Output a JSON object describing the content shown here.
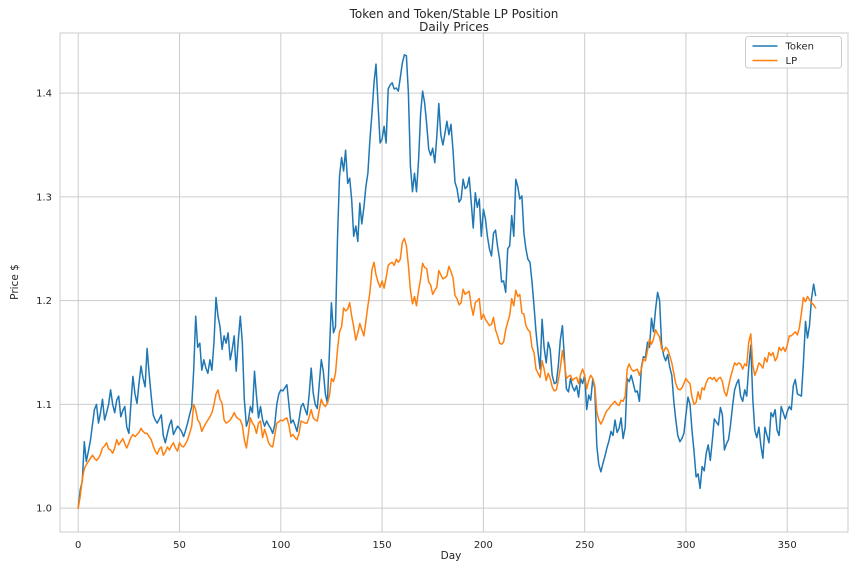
{
  "figure": {
    "title_line1": "Token and Token/Stable LP Position",
    "title_line2": "Daily Prices",
    "xlabel": "Day",
    "ylabel": "Price $"
  },
  "legend": {
    "entries": [
      {
        "label": "Token",
        "color": "#1f77b4"
      },
      {
        "label": "LP",
        "color": "#ff7f0e"
      }
    ]
  },
  "colors": {
    "token_line": "#1f77b4",
    "lp_line": "#ff7f0e",
    "grid": "#cccccc",
    "spine": "#cccccc",
    "text": "#262626",
    "background": "#ffffff"
  },
  "chart_data": {
    "type": "line",
    "title": "Token and Token/Stable LP Position",
    "subtitle": "Daily Prices",
    "xlabel": "Day",
    "ylabel": "Price $",
    "grid": true,
    "legend_position": "upper right",
    "x_ticks": [
      0,
      50,
      100,
      150,
      200,
      250,
      300,
      350
    ],
    "y_ticks": [
      1.0,
      1.1,
      1.2,
      1.3,
      1.4
    ],
    "xlim": [
      -9,
      380
    ],
    "ylim": [
      0.977,
      1.458
    ],
    "x_start": 0,
    "x_step": 1,
    "n_points": 365,
    "x_unit": "day",
    "series": [
      {
        "name": "Token",
        "color": "#1f77b4",
        "values": [
          1.0,
          1.018,
          1.026,
          1.064,
          1.045,
          1.055,
          1.065,
          1.08,
          1.095,
          1.1,
          1.082,
          1.092,
          1.105,
          1.085,
          1.092,
          1.1,
          1.114,
          1.1,
          1.092,
          1.104,
          1.108,
          1.088,
          1.094,
          1.098,
          1.078,
          1.072,
          1.1,
          1.127,
          1.11,
          1.101,
          1.12,
          1.137,
          1.125,
          1.117,
          1.154,
          1.13,
          1.108,
          1.09,
          1.085,
          1.082,
          1.086,
          1.09,
          1.07,
          1.063,
          1.072,
          1.08,
          1.085,
          1.071,
          1.075,
          1.079,
          1.077,
          1.074,
          1.069,
          1.075,
          1.082,
          1.09,
          1.098,
          1.133,
          1.185,
          1.155,
          1.159,
          1.133,
          1.143,
          1.135,
          1.13,
          1.143,
          1.133,
          1.16,
          1.203,
          1.185,
          1.175,
          1.153,
          1.166,
          1.159,
          1.169,
          1.143,
          1.153,
          1.166,
          1.132,
          1.162,
          1.185,
          1.16,
          1.105,
          1.079,
          1.085,
          1.098,
          1.092,
          1.132,
          1.108,
          1.087,
          1.098,
          1.085,
          1.079,
          1.084,
          1.08,
          1.077,
          1.072,
          1.08,
          1.1,
          1.11,
          1.114,
          1.113,
          1.116,
          1.119,
          1.1,
          1.082,
          1.085,
          1.08,
          1.074,
          1.085,
          1.098,
          1.101,
          1.095,
          1.09,
          1.11,
          1.135,
          1.111,
          1.1,
          1.096,
          1.12,
          1.143,
          1.132,
          1.11,
          1.101,
          1.15,
          1.198,
          1.169,
          1.175,
          1.26,
          1.32,
          1.338,
          1.325,
          1.345,
          1.313,
          1.318,
          1.297,
          1.262,
          1.272,
          1.257,
          1.294,
          1.274,
          1.29,
          1.31,
          1.323,
          1.355,
          1.381,
          1.41,
          1.428,
          1.39,
          1.352,
          1.356,
          1.368,
          1.352,
          1.404,
          1.408,
          1.41,
          1.404,
          1.405,
          1.402,
          1.415,
          1.429,
          1.437,
          1.436,
          1.4,
          1.33,
          1.305,
          1.323,
          1.305,
          1.336,
          1.38,
          1.402,
          1.391,
          1.37,
          1.346,
          1.34,
          1.347,
          1.333,
          1.358,
          1.39,
          1.36,
          1.35,
          1.361,
          1.373,
          1.36,
          1.37,
          1.345,
          1.314,
          1.308,
          1.295,
          1.298,
          1.317,
          1.308,
          1.31,
          1.319,
          1.295,
          1.27,
          1.304,
          1.29,
          1.298,
          1.262,
          1.288,
          1.279,
          1.262,
          1.25,
          1.243,
          1.265,
          1.268,
          1.252,
          1.24,
          1.218,
          1.219,
          1.208,
          1.25,
          1.253,
          1.282,
          1.262,
          1.317,
          1.31,
          1.298,
          1.301,
          1.265,
          1.25,
          1.24,
          1.237,
          1.218,
          1.195,
          1.17,
          1.15,
          1.134,
          1.182,
          1.155,
          1.14,
          1.16,
          1.153,
          1.128,
          1.12,
          1.121,
          1.137,
          1.162,
          1.176,
          1.145,
          1.115,
          1.112,
          1.125,
          1.117,
          1.113,
          1.118,
          1.107,
          1.125,
          1.12,
          1.128,
          1.095,
          1.109,
          1.104,
          1.125,
          1.115,
          1.06,
          1.042,
          1.035,
          1.043,
          1.05,
          1.058,
          1.065,
          1.074,
          1.07,
          1.085,
          1.073,
          1.077,
          1.087,
          1.067,
          1.078,
          1.125,
          1.122,
          1.128,
          1.12,
          1.112,
          1.113,
          1.103,
          1.136,
          1.146,
          1.145,
          1.16,
          1.155,
          1.183,
          1.17,
          1.192,
          1.208,
          1.2,
          1.158,
          1.147,
          1.142,
          1.148,
          1.136,
          1.128,
          1.103,
          1.085,
          1.07,
          1.064,
          1.067,
          1.072,
          1.09,
          1.107,
          1.1,
          1.075,
          1.055,
          1.03,
          1.033,
          1.019,
          1.04,
          1.036,
          1.053,
          1.061,
          1.046,
          1.065,
          1.086,
          1.083,
          1.08,
          1.097,
          1.09,
          1.056,
          1.062,
          1.066,
          1.08,
          1.098,
          1.114,
          1.12,
          1.124,
          1.108,
          1.103,
          1.114,
          1.108,
          1.135,
          1.157,
          1.105,
          1.075,
          1.068,
          1.078,
          1.06,
          1.048,
          1.078,
          1.07,
          1.063,
          1.092,
          1.088,
          1.095,
          1.075,
          1.07,
          1.098,
          1.092,
          1.086,
          1.093,
          1.098,
          1.095,
          1.118,
          1.124,
          1.11,
          1.109,
          1.108,
          1.14,
          1.18,
          1.164,
          1.176,
          1.202,
          1.216,
          1.205
        ]
      },
      {
        "name": "LP",
        "color": "#ff7f0e",
        "values": [
          1.0,
          1.012,
          1.028,
          1.038,
          1.042,
          1.045,
          1.048,
          1.051,
          1.048,
          1.046,
          1.048,
          1.052,
          1.058,
          1.06,
          1.063,
          1.057,
          1.056,
          1.053,
          1.058,
          1.066,
          1.061,
          1.064,
          1.067,
          1.062,
          1.058,
          1.063,
          1.068,
          1.071,
          1.069,
          1.071,
          1.073,
          1.077,
          1.074,
          1.072,
          1.072,
          1.069,
          1.066,
          1.06,
          1.055,
          1.052,
          1.057,
          1.059,
          1.051,
          1.054,
          1.059,
          1.056,
          1.06,
          1.063,
          1.058,
          1.055,
          1.063,
          1.06,
          1.059,
          1.062,
          1.066,
          1.072,
          1.079,
          1.1,
          1.095,
          1.085,
          1.082,
          1.074,
          1.078,
          1.082,
          1.085,
          1.088,
          1.092,
          1.1,
          1.11,
          1.114,
          1.105,
          1.101,
          1.085,
          1.082,
          1.083,
          1.085,
          1.088,
          1.092,
          1.088,
          1.086,
          1.085,
          1.08,
          1.066,
          1.058,
          1.072,
          1.087,
          1.082,
          1.079,
          1.072,
          1.082,
          1.084,
          1.068,
          1.076,
          1.07,
          1.063,
          1.06,
          1.059,
          1.07,
          1.082,
          1.083,
          1.085,
          1.084,
          1.086,
          1.087,
          1.08,
          1.069,
          1.071,
          1.068,
          1.066,
          1.072,
          1.084,
          1.083,
          1.082,
          1.082,
          1.088,
          1.095,
          1.087,
          1.085,
          1.084,
          1.095,
          1.105,
          1.1,
          1.098,
          1.101,
          1.108,
          1.125,
          1.122,
          1.13,
          1.153,
          1.17,
          1.175,
          1.193,
          1.19,
          1.192,
          1.198,
          1.185,
          1.175,
          1.162,
          1.169,
          1.178,
          1.172,
          1.166,
          1.18,
          1.195,
          1.208,
          1.23,
          1.237,
          1.225,
          1.218,
          1.213,
          1.219,
          1.212,
          1.222,
          1.234,
          1.236,
          1.237,
          1.234,
          1.24,
          1.237,
          1.24,
          1.256,
          1.26,
          1.253,
          1.234,
          1.21,
          1.197,
          1.204,
          1.195,
          1.21,
          1.221,
          1.236,
          1.232,
          1.231,
          1.218,
          1.215,
          1.206,
          1.21,
          1.213,
          1.229,
          1.225,
          1.221,
          1.222,
          1.224,
          1.233,
          1.228,
          1.222,
          1.205,
          1.202,
          1.196,
          1.198,
          1.211,
          1.206,
          1.208,
          1.209,
          1.195,
          1.186,
          1.198,
          1.2,
          1.202,
          1.182,
          1.187,
          1.182,
          1.179,
          1.176,
          1.177,
          1.184,
          1.172,
          1.166,
          1.159,
          1.158,
          1.16,
          1.172,
          1.179,
          1.186,
          1.202,
          1.195,
          1.21,
          1.204,
          1.206,
          1.188,
          1.187,
          1.176,
          1.172,
          1.17,
          1.155,
          1.15,
          1.134,
          1.13,
          1.126,
          1.142,
          1.134,
          1.123,
          1.13,
          1.125,
          1.117,
          1.113,
          1.114,
          1.123,
          1.135,
          1.152,
          1.14,
          1.125,
          1.127,
          1.128,
          1.123,
          1.125,
          1.126,
          1.12,
          1.129,
          1.134,
          1.128,
          1.115,
          1.123,
          1.128,
          1.125,
          1.118,
          1.093,
          1.085,
          1.081,
          1.085,
          1.09,
          1.094,
          1.096,
          1.099,
          1.101,
          1.103,
          1.1,
          1.099,
          1.104,
          1.103,
          1.108,
          1.134,
          1.139,
          1.134,
          1.132,
          1.133,
          1.134,
          1.128,
          1.134,
          1.144,
          1.142,
          1.152,
          1.163,
          1.158,
          1.163,
          1.172,
          1.168,
          1.165,
          1.154,
          1.151,
          1.155,
          1.153,
          1.147,
          1.14,
          1.13,
          1.12,
          1.115,
          1.114,
          1.116,
          1.12,
          1.125,
          1.122,
          1.12,
          1.107,
          1.1,
          1.102,
          1.112,
          1.105,
          1.116,
          1.114,
          1.121,
          1.125,
          1.126,
          1.124,
          1.126,
          1.122,
          1.125,
          1.126,
          1.122,
          1.112,
          1.108,
          1.117,
          1.126,
          1.133,
          1.14,
          1.138,
          1.14,
          1.139,
          1.134,
          1.139,
          1.137,
          1.16,
          1.168,
          1.138,
          1.128,
          1.133,
          1.14,
          1.138,
          1.135,
          1.145,
          1.141,
          1.15,
          1.147,
          1.15,
          1.142,
          1.145,
          1.155,
          1.152,
          1.155,
          1.151,
          1.157,
          1.166,
          1.166,
          1.168,
          1.17,
          1.167,
          1.174,
          1.188,
          1.203,
          1.199,
          1.204,
          1.201,
          1.198,
          1.196,
          1.193
        ]
      }
    ]
  }
}
